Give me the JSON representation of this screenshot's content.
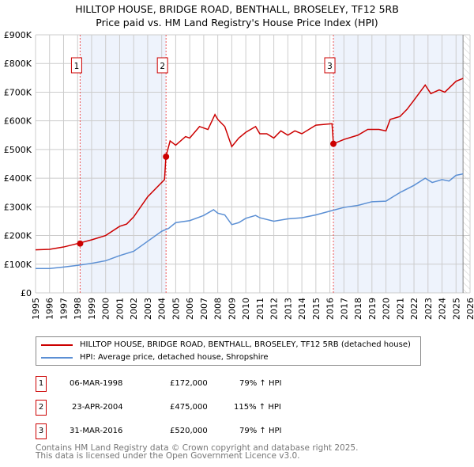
{
  "chart_data": {
    "type": "line",
    "title": "HILLTOP HOUSE, BRIDGE ROAD, BENTHALL, BROSELEY, TF12 5RB",
    "subtitle": "Price paid vs. HM Land Registry's House Price Index (HPI)",
    "xlim": [
      1995,
      2026
    ],
    "ylim": [
      0,
      900000
    ],
    "yticks": [
      {
        "v": 0,
        "label": "£0"
      },
      {
        "v": 100000,
        "label": "£100K"
      },
      {
        "v": 200000,
        "label": "£200K"
      },
      {
        "v": 300000,
        "label": "£300K"
      },
      {
        "v": 400000,
        "label": "£400K"
      },
      {
        "v": 500000,
        "label": "£500K"
      },
      {
        "v": 600000,
        "label": "£600K"
      },
      {
        "v": 700000,
        "label": "£700K"
      },
      {
        "v": 800000,
        "label": "£800K"
      },
      {
        "v": 900000,
        "label": "£900K"
      }
    ],
    "xticks": [
      "1995",
      "1996",
      "1997",
      "1998",
      "1999",
      "2000",
      "2001",
      "2002",
      "2003",
      "2004",
      "2005",
      "2006",
      "2007",
      "2008",
      "2009",
      "2010",
      "2011",
      "2012",
      "2013",
      "2014",
      "2015",
      "2016",
      "2017",
      "2018",
      "2019",
      "2020",
      "2021",
      "2022",
      "2023",
      "2024",
      "2025",
      "2026"
    ],
    "grid": true,
    "series": [
      {
        "name": "HILLTOP HOUSE, BRIDGE ROAD, BENTHALL, BROSELEY, TF12 5RB (detached house)",
        "color": "#cc0000",
        "x": [
          1995,
          1996,
          1997,
          1998,
          1999,
          2000,
          2001,
          2001.5,
          2002,
          2003,
          2004.2,
          2004.3,
          2004.6,
          2005,
          2005.7,
          2006,
          2006.7,
          2007.3,
          2007.8,
          2008,
          2008.5,
          2009,
          2009.5,
          2010,
          2010.7,
          2011,
          2011.5,
          2012,
          2012.5,
          2013,
          2013.5,
          2014,
          2015,
          2016.15,
          2016.25,
          2017,
          2018,
          2018.7,
          2019.5,
          2020,
          2020.3,
          2021,
          2021.5,
          2022,
          2022.8,
          2023.2,
          2023.8,
          2024.2,
          2025,
          2025.5
        ],
        "y": [
          150000,
          152000,
          160000,
          172000,
          185000,
          200000,
          232000,
          240000,
          265000,
          335000,
          395000,
          475000,
          530000,
          515000,
          545000,
          540000,
          580000,
          570000,
          622000,
          605000,
          580000,
          510000,
          540000,
          560000,
          580000,
          555000,
          555000,
          540000,
          565000,
          550000,
          565000,
          555000,
          585000,
          590000,
          520000,
          535000,
          550000,
          570000,
          570000,
          565000,
          605000,
          615000,
          640000,
          672000,
          725000,
          695000,
          708000,
          700000,
          738000,
          748000
        ]
      },
      {
        "name": "HPI: Average price, detached house, Shropshire",
        "color": "#5b8fd4",
        "x": [
          1995,
          1996,
          1997,
          1998,
          1999,
          2000,
          2001,
          2002,
          2003,
          2004,
          2004.5,
          2005,
          2006,
          2007,
          2007.7,
          2008,
          2008.5,
          2009,
          2009.5,
          2010,
          2010.7,
          2011,
          2012,
          2013,
          2014,
          2015,
          2016,
          2017,
          2018,
          2019,
          2020,
          2020.5,
          2021,
          2022,
          2022.8,
          2023.3,
          2024,
          2024.5,
          2025,
          2025.5
        ],
        "y": [
          85000,
          85000,
          90000,
          96000,
          103000,
          112000,
          130000,
          145000,
          180000,
          215000,
          225000,
          245000,
          252000,
          270000,
          290000,
          278000,
          272000,
          238000,
          245000,
          260000,
          270000,
          262000,
          250000,
          258000,
          262000,
          272000,
          285000,
          298000,
          305000,
          318000,
          320000,
          335000,
          350000,
          375000,
          400000,
          385000,
          395000,
          390000,
          410000,
          415000
        ]
      }
    ],
    "sales": [
      {
        "n": "1",
        "x": 1998.18,
        "y": 172000
      },
      {
        "n": "2",
        "x": 2004.31,
        "y": 475000
      },
      {
        "n": "3",
        "x": 2016.25,
        "y": 520000
      }
    ],
    "shaded": [
      [
        1998.18,
        2004.31
      ],
      [
        2016.25,
        2025.5
      ]
    ],
    "hatched_from": 2025.5
  },
  "legend": {
    "property": "HILLTOP HOUSE, BRIDGE ROAD, BENTHALL, BROSELEY, TF12 5RB (detached house)",
    "hpi": "HPI: Average price, detached house, Shropshire"
  },
  "transactions": [
    {
      "n": "1",
      "date": "06-MAR-1998",
      "price": "£172,000",
      "hpi": "79% ↑ HPI"
    },
    {
      "n": "2",
      "date": "23-APR-2004",
      "price": "£475,000",
      "hpi": "115% ↑ HPI"
    },
    {
      "n": "3",
      "date": "31-MAR-2016",
      "price": "£520,000",
      "hpi": "79% ↑ HPI"
    }
  ],
  "footer": {
    "line1": "Contains HM Land Registry data © Crown copyright and database right 2025.",
    "line2": "This data is licensed under the Open Government Licence v3.0."
  }
}
